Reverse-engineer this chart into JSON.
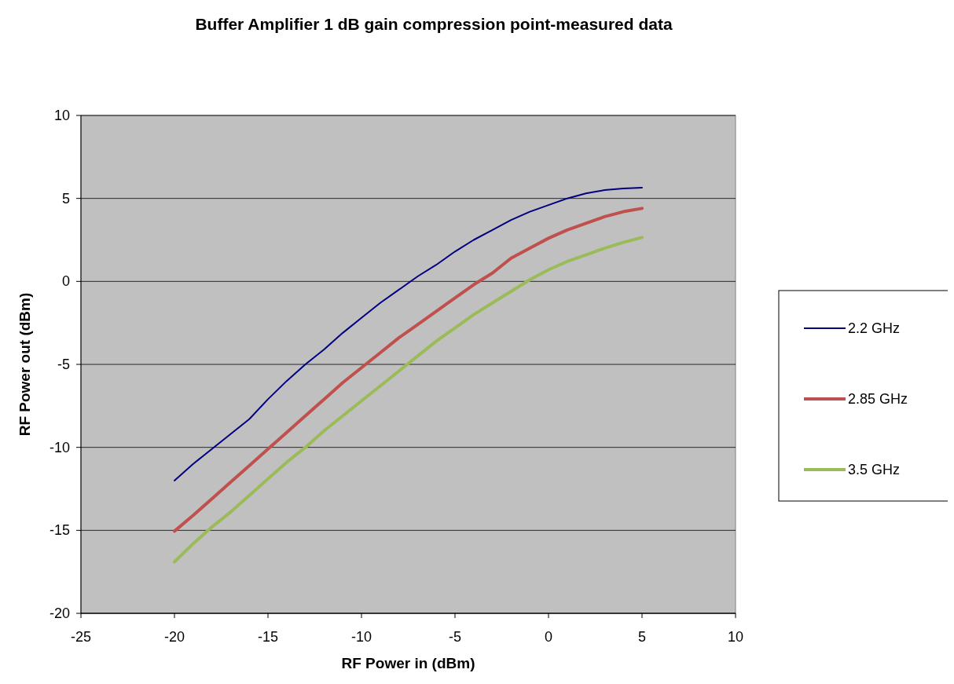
{
  "chart_data": {
    "type": "line",
    "title": "Buffer Amplifier 1 dB gain compression point-measured data",
    "xlabel": "RF Power in (dBm)",
    "ylabel": "RF Power out (dBm)",
    "x": [
      -20,
      -19,
      -18,
      -17,
      -16,
      -15,
      -14,
      -13,
      -12,
      -11,
      -10,
      -9,
      -8,
      -7,
      -6,
      -5,
      -4,
      -3,
      -2,
      -1,
      0,
      1,
      2,
      3,
      4,
      5
    ],
    "series": [
      {
        "name": "2.2 GHz",
        "color": "#000080",
        "values": [
          -12,
          -11,
          -10.1,
          -9.2,
          -8.3,
          -7.1,
          -6,
          -5,
          -4.1,
          -3.1,
          -2.2,
          -1.3,
          -0.5,
          0.3,
          1.0,
          1.8,
          2.5,
          3.1,
          3.7,
          4.2,
          4.6,
          5.0,
          5.3,
          5.5,
          5.6,
          5.65
        ]
      },
      {
        "name": "2.85 GHz",
        "color": "#c0504d",
        "values": [
          -15.05,
          -14.1,
          -13.1,
          -12.1,
          -11.1,
          -10.1,
          -9.1,
          -8.1,
          -7.1,
          -6.1,
          -5.2,
          -4.3,
          -3.4,
          -2.6,
          -1.8,
          -1.0,
          -0.2,
          0.5,
          1.4,
          2.0,
          2.6,
          3.1,
          3.5,
          3.9,
          4.2,
          4.4
        ]
      },
      {
        "name": "3.5 GHz",
        "color": "#9bbb59",
        "values": [
          -16.9,
          -15.8,
          -14.8,
          -13.9,
          -12.9,
          -11.9,
          -10.9,
          -10,
          -9,
          -8.1,
          -7.2,
          -6.3,
          -5.4,
          -4.5,
          -3.6,
          -2.8,
          -2.0,
          -1.3,
          -0.6,
          0.1,
          0.7,
          1.2,
          1.6,
          2.0,
          2.35,
          2.65
        ]
      }
    ],
    "xlim": [
      -25,
      10
    ],
    "xticks": [
      -25,
      -20,
      -15,
      -10,
      -5,
      0,
      5,
      10
    ],
    "ylim": [
      -20,
      10
    ],
    "yticks": [
      -20,
      -15,
      -10,
      -5,
      0,
      5,
      10
    ],
    "grid": "y",
    "legend": "right",
    "marker": "none",
    "line_style": "solid"
  }
}
